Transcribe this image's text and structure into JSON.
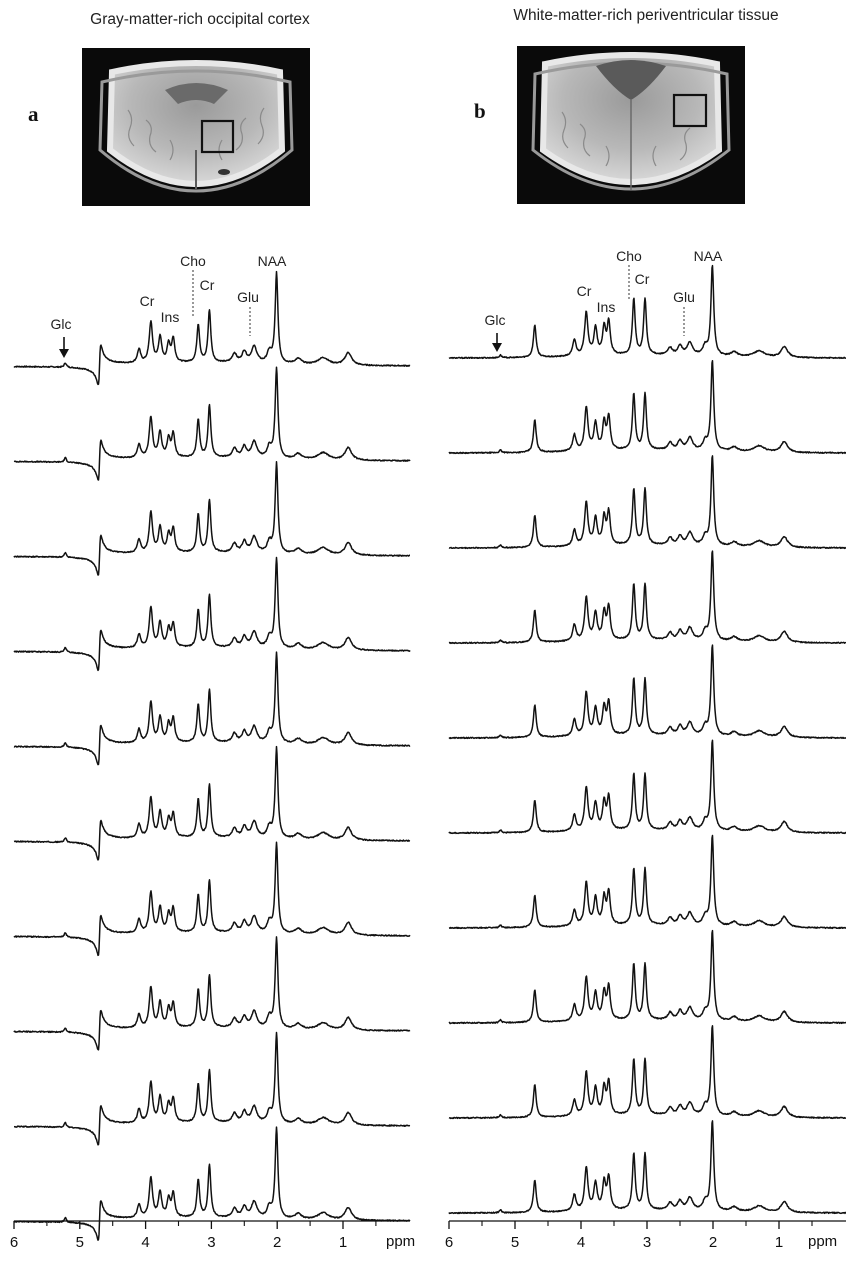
{
  "figure": {
    "panels": [
      {
        "letter": "a",
        "title": "Gray-matter-rich occipital cortex",
        "xlabel": "ppm",
        "x_ticks": [
          "6",
          "5",
          "4",
          "3",
          "2",
          "1"
        ],
        "voi": "box over posterior occipital region"
      },
      {
        "letter": "b",
        "title": "White-matter-rich periventricular tissue",
        "xlabel": "ppm",
        "x_ticks": [
          "6",
          "5",
          "4",
          "3",
          "2",
          "1"
        ],
        "voi": "box over right periventricular white matter"
      }
    ],
    "peak_labels": [
      "Glc",
      "Cr",
      "Ins",
      "Cho",
      "Cr",
      "Glu",
      "NAA"
    ]
  },
  "chart_data": [
    {
      "type": "line",
      "title": "Gray-matter-rich occipital cortex",
      "xlabel": "ppm",
      "ylabel": "",
      "xlim": [
        6.0,
        0.0
      ],
      "x_reversed": true,
      "grid": false,
      "n_series": 10,
      "stacked_offset": true,
      "peak_positions_ppm": {
        "Glc": 5.22,
        "Cr_CH2": 3.92,
        "Ins": 3.58,
        "Cho": 3.2,
        "Cr_CH3": 3.03,
        "Glu": 2.35,
        "NAA": 2.01,
        "water_residual": 4.7
      },
      "peaks": [
        {
          "ppm": 2.01,
          "height": 1.0,
          "width": 0.025
        },
        {
          "ppm": 3.03,
          "height": 0.58,
          "width": 0.025
        },
        {
          "ppm": 3.2,
          "height": 0.42,
          "width": 0.025
        },
        {
          "ppm": 3.92,
          "height": 0.45,
          "width": 0.03
        },
        {
          "ppm": 3.78,
          "height": 0.28,
          "width": 0.03
        },
        {
          "ppm": 3.58,
          "height": 0.26,
          "width": 0.028
        },
        {
          "ppm": 3.65,
          "height": 0.2,
          "width": 0.028
        },
        {
          "ppm": 4.1,
          "height": 0.15,
          "width": 0.03
        },
        {
          "ppm": 2.35,
          "height": 0.18,
          "width": 0.05
        },
        {
          "ppm": 2.5,
          "height": 0.12,
          "width": 0.04
        },
        {
          "ppm": 2.65,
          "height": 0.1,
          "width": 0.04
        },
        {
          "ppm": 2.12,
          "height": 0.12,
          "width": 0.04
        },
        {
          "ppm": 1.68,
          "height": 0.06,
          "width": 0.06
        },
        {
          "ppm": 1.3,
          "height": 0.08,
          "width": 0.1
        },
        {
          "ppm": 0.92,
          "height": 0.14,
          "width": 0.06
        },
        {
          "ppm": 5.22,
          "height": 0.05,
          "width": 0.02
        }
      ],
      "water_dispersive": -0.22,
      "series_scale": [
        1.0,
        1.0,
        1.0,
        1.0,
        1.0,
        1.0,
        1.0,
        1.0,
        1.0,
        1.0
      ]
    },
    {
      "type": "line",
      "title": "White-matter-rich periventricular tissue",
      "xlabel": "ppm",
      "ylabel": "",
      "xlim": [
        6.0,
        0.0
      ],
      "x_reversed": true,
      "grid": false,
      "n_series": 10,
      "stacked_offset": true,
      "peak_positions_ppm": {
        "Glc": 5.22,
        "Cr_CH2": 3.92,
        "Ins": 3.58,
        "Cho": 3.2,
        "Cr_CH3": 3.03,
        "Glu": 2.35,
        "NAA": 2.01,
        "water_residual": 4.7
      },
      "peaks": [
        {
          "ppm": 2.01,
          "height": 1.0,
          "width": 0.025
        },
        {
          "ppm": 3.03,
          "height": 0.62,
          "width": 0.025
        },
        {
          "ppm": 3.2,
          "height": 0.62,
          "width": 0.025
        },
        {
          "ppm": 3.92,
          "height": 0.48,
          "width": 0.03
        },
        {
          "ppm": 3.78,
          "height": 0.3,
          "width": 0.03
        },
        {
          "ppm": 3.58,
          "height": 0.36,
          "width": 0.028
        },
        {
          "ppm": 3.65,
          "height": 0.3,
          "width": 0.028
        },
        {
          "ppm": 4.1,
          "height": 0.18,
          "width": 0.03
        },
        {
          "ppm": 2.35,
          "height": 0.14,
          "width": 0.05
        },
        {
          "ppm": 2.5,
          "height": 0.1,
          "width": 0.04
        },
        {
          "ppm": 2.65,
          "height": 0.08,
          "width": 0.04
        },
        {
          "ppm": 2.12,
          "height": 0.1,
          "width": 0.04
        },
        {
          "ppm": 1.68,
          "height": 0.05,
          "width": 0.06
        },
        {
          "ppm": 1.3,
          "height": 0.07,
          "width": 0.1
        },
        {
          "ppm": 0.92,
          "height": 0.12,
          "width": 0.06
        },
        {
          "ppm": 5.22,
          "height": 0.03,
          "width": 0.02
        },
        {
          "ppm": 4.7,
          "height": 0.36,
          "width": 0.025
        }
      ],
      "water_dispersive": 0.0,
      "series_scale": [
        1.0,
        1.0,
        1.0,
        1.0,
        1.0,
        1.0,
        1.0,
        1.0,
        1.0,
        1.0
      ]
    }
  ]
}
